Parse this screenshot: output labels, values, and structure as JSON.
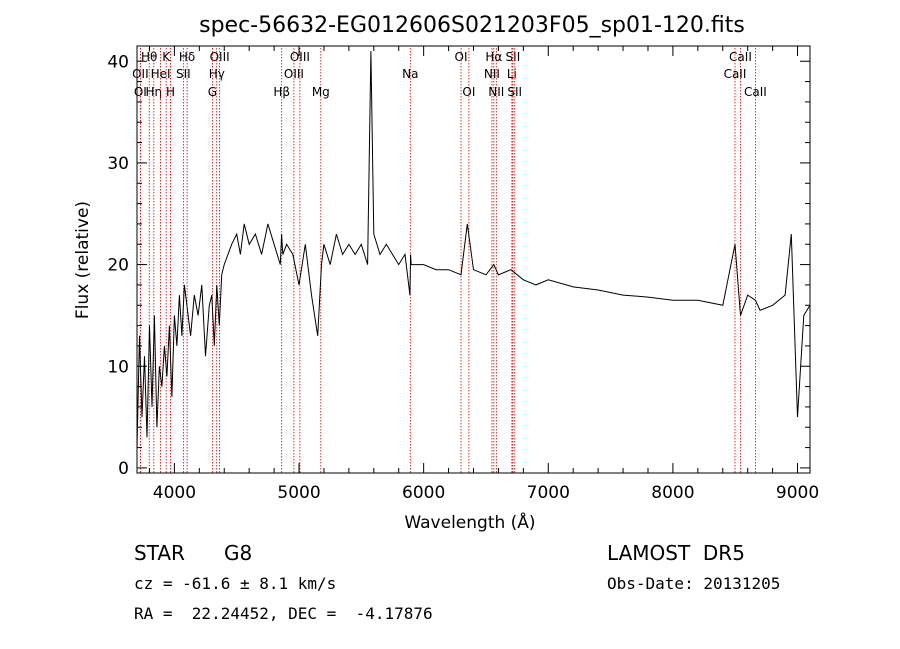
{
  "chart_data": {
    "type": "line",
    "title": "spec-56632-EG012606S021203F05_sp01-120.fits",
    "xlabel": "Wavelength (Å)",
    "ylabel": "Flux (relative)",
    "xlim": [
      3700,
      9100
    ],
    "ylim": [
      -0.5,
      41.5
    ],
    "x_ticks": [
      4000,
      5000,
      6000,
      7000,
      8000,
      9000
    ],
    "y_ticks": [
      0,
      10,
      20,
      30,
      40
    ],
    "x_tick_labels": [
      "4000",
      "5000",
      "6000",
      "7000",
      "8000",
      "9000"
    ],
    "y_tick_labels": [
      "0",
      "10",
      "20",
      "30",
      "40"
    ],
    "series": [
      {
        "x": [
          3700,
          3720,
          3740,
          3760,
          3780,
          3800,
          3820,
          3840,
          3860,
          3880,
          3900,
          3920,
          3940,
          3960,
          3980,
          4000,
          4020,
          4040,
          4060,
          4080,
          4100,
          4130,
          4160,
          4190,
          4220,
          4250,
          4280,
          4300,
          4320,
          4340,
          4360,
          4380,
          4400,
          4430,
          4460,
          4500,
          4530,
          4560,
          4600,
          4650,
          4700,
          4750,
          4800,
          4850,
          4860,
          4870,
          4900,
          4950,
          5000,
          5050,
          5100,
          5150,
          5180,
          5200,
          5250,
          5300,
          5350,
          5400,
          5450,
          5500,
          5550,
          5577,
          5600,
          5650,
          5700,
          5750,
          5800,
          5850,
          5890,
          5895,
          5900,
          5950,
          6000,
          6100,
          6200,
          6300,
          6350,
          6400,
          6500,
          6563,
          6600,
          6700,
          6800,
          6900,
          7000,
          7200,
          7400,
          7600,
          7800,
          8000,
          8200,
          8400,
          8498,
          8542,
          8600,
          8662,
          8700,
          8800,
          8900,
          8950,
          9000,
          9050,
          9100
        ],
        "y": [
          2,
          13,
          5,
          11,
          3,
          14,
          6,
          15,
          4,
          10,
          8,
          12,
          9,
          14,
          7,
          15,
          12,
          17,
          13,
          18,
          16,
          13,
          17,
          15,
          18,
          11,
          16,
          17,
          12,
          18,
          14,
          19,
          20,
          21,
          22,
          23,
          21,
          24,
          22,
          23,
          21,
          24,
          22,
          20,
          23,
          21,
          22,
          21,
          18,
          22,
          17,
          13,
          20,
          22,
          20,
          23,
          21,
          22,
          21,
          22,
          20,
          41,
          23,
          21,
          22,
          21,
          20,
          21,
          17,
          21,
          20,
          20,
          20,
          19.5,
          19.5,
          19,
          24,
          19.5,
          19,
          20,
          19,
          19.5,
          18.5,
          18,
          18.5,
          17.8,
          17.5,
          17,
          16.8,
          16.5,
          16.5,
          16,
          22,
          15,
          17,
          16.5,
          15.5,
          16,
          17,
          23,
          5,
          15,
          16
        ]
      }
    ],
    "line_markers": [
      {
        "label": "Hθ",
        "x": 3798,
        "row": 0
      },
      {
        "label": "OII",
        "x": 3727,
        "row": 1
      },
      {
        "label": "OI",
        "x": 3727,
        "row": 2
      },
      {
        "label": "Hη",
        "x": 3835,
        "row": 2
      },
      {
        "label": "HeI",
        "x": 3889,
        "row": 1
      },
      {
        "label": "K",
        "x": 3934,
        "row": 0
      },
      {
        "label": "H",
        "x": 3969,
        "row": 2
      },
      {
        "label": "Hδ",
        "x": 4102,
        "row": 0
      },
      {
        "label": "SII",
        "x": 4072,
        "row": 1
      },
      {
        "label": "OIII",
        "x": 4363,
        "row": 0
      },
      {
        "label": "Hγ",
        "x": 4340,
        "row": 1
      },
      {
        "label": "G",
        "x": 4305,
        "row": 2
      },
      {
        "label": "Hβ",
        "x": 4861,
        "row": 2
      },
      {
        "label": "OIII",
        "x": 5007,
        "row": 0
      },
      {
        "label": "OIII",
        "x": 4959,
        "row": 1
      },
      {
        "label": "Mg",
        "x": 5175,
        "row": 2
      },
      {
        "label": "Na",
        "x": 5893,
        "row": 1
      },
      {
        "label": "OI",
        "x": 6300,
        "row": 0
      },
      {
        "label": "OI",
        "x": 6363,
        "row": 2
      },
      {
        "label": "Hα",
        "x": 6563,
        "row": 0
      },
      {
        "label": "SII",
        "x": 6716,
        "row": 0
      },
      {
        "label": "NII",
        "x": 6548,
        "row": 1
      },
      {
        "label": "Li",
        "x": 6708,
        "row": 1
      },
      {
        "label": "NII",
        "x": 6583,
        "row": 2
      },
      {
        "label": "SII",
        "x": 6731,
        "row": 2
      },
      {
        "label": "CaII",
        "x": 8542,
        "row": 0
      },
      {
        "label": "CaII",
        "x": 8498,
        "row": 1
      },
      {
        "label": "CaII",
        "x": 8662,
        "row": 2
      }
    ],
    "grid": false,
    "legend": "none"
  },
  "footer": {
    "object_class": "STAR",
    "subclass": "G8",
    "survey": "LAMOST  DR5",
    "redshift": "cz = -61.6 ± 8.1 km/s",
    "obs_date": "Obs-Date: 20131205",
    "coords": "RA =  22.24452, DEC =  -4.17876"
  }
}
